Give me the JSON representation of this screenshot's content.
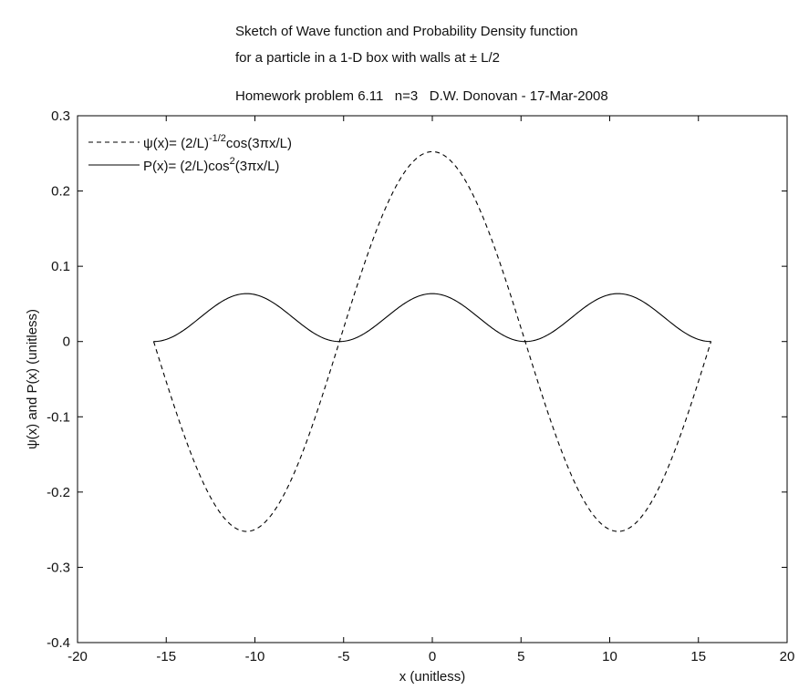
{
  "chart_data": {
    "type": "line",
    "title_lines": [
      "Sketch of Wave function and Probability Density function",
      "for a particle in a 1-D box with walls at ± L/2",
      "Homework problem 6.11   n=3   D.W. Donovan - 17-Mar-2008"
    ],
    "xlabel": "x (unitless)",
    "ylabel": "ψ(x) and P(x) (unitless)",
    "xlim": [
      -20,
      20
    ],
    "ylim": [
      -0.4,
      0.3
    ],
    "xticks": [
      "-20",
      "-15",
      "-10",
      "-5",
      "0",
      "5",
      "10",
      "15",
      "20"
    ],
    "yticks": [
      "-0.4",
      "-0.3",
      "-0.2",
      "-0.1",
      "0",
      "0.1",
      "0.2",
      "0.3"
    ],
    "grid": false,
    "legend_position": "top-left",
    "series": [
      {
        "name": "ψ(x)= (2/L)^-1/2cos(3πx/L)",
        "legend_parts": [
          "ψ(x)= (2/L)",
          "-1/2",
          "cos(3πx/L)"
        ],
        "line_style": "dashed",
        "x": [
          -15.71,
          -15.0,
          -14.0,
          -13.0,
          -12.0,
          -11.0,
          -10.47,
          -10.0,
          -9.0,
          -8.0,
          -7.0,
          -6.0,
          -5.24,
          -4.0,
          -3.0,
          -2.0,
          -1.0,
          0.0,
          1.0,
          2.0,
          3.0,
          4.0,
          5.24,
          6.0,
          7.0,
          8.0,
          9.0,
          10.0,
          10.47,
          11.0,
          12.0,
          13.0,
          14.0,
          15.0,
          15.71
        ],
        "y": [
          0.0,
          -0.036,
          -0.085,
          -0.13,
          -0.191,
          -0.246,
          -0.252,
          -0.247,
          -0.222,
          -0.172,
          -0.106,
          -0.035,
          0.0,
          0.087,
          0.15,
          0.207,
          0.242,
          0.252,
          0.242,
          0.207,
          0.15,
          0.087,
          0.0,
          -0.035,
          -0.106,
          -0.172,
          -0.222,
          -0.247,
          -0.252,
          -0.246,
          -0.191,
          -0.13,
          -0.085,
          -0.036,
          0.0
        ]
      },
      {
        "name": "P(x)= (2/L)cos^2(3πx/L)",
        "legend_parts": [
          "P(x)= (2/L)cos",
          "2",
          "(3πx/L)"
        ],
        "line_style": "solid",
        "x": [
          -15.71,
          -15.0,
          -14.0,
          -13.0,
          -12.0,
          -11.0,
          -10.47,
          -10.0,
          -9.0,
          -8.0,
          -7.0,
          -6.0,
          -5.24,
          -4.0,
          -3.0,
          -2.0,
          -1.0,
          0.0,
          1.0,
          2.0,
          3.0,
          4.0,
          5.24,
          6.0,
          7.0,
          8.0,
          9.0,
          10.0,
          10.47,
          11.0,
          12.0,
          13.0,
          14.0,
          15.0,
          15.71
        ],
        "y": [
          0.0,
          0.0013,
          0.0072,
          0.0168,
          0.0365,
          0.0605,
          0.0637,
          0.061,
          0.0492,
          0.0296,
          0.0112,
          0.0012,
          0.0,
          0.0076,
          0.0224,
          0.0428,
          0.0587,
          0.0637,
          0.0587,
          0.0428,
          0.0224,
          0.0076,
          0.0,
          0.0012,
          0.0112,
          0.0296,
          0.0492,
          0.061,
          0.0637,
          0.0605,
          0.0365,
          0.0168,
          0.0072,
          0.0013,
          0.0
        ]
      }
    ]
  }
}
